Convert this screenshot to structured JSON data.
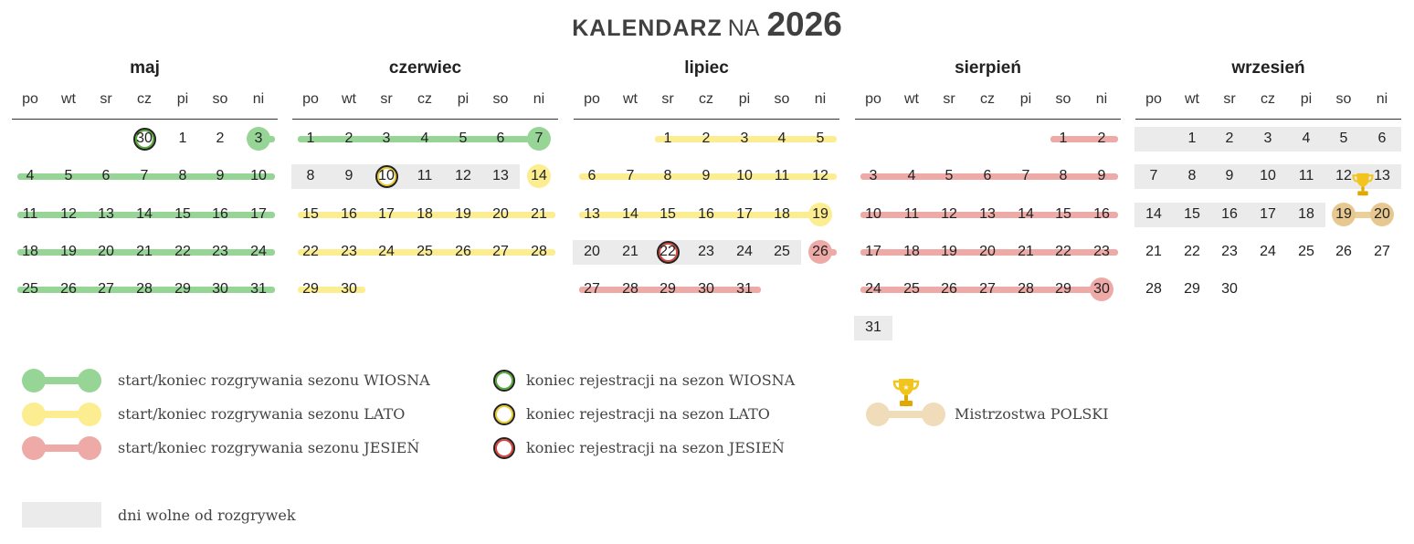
{
  "title": {
    "part1": "KALENDARZ",
    "part2": "NA",
    "year": "2026"
  },
  "weekdays": [
    "po",
    "wt",
    "sr",
    "cz",
    "pi",
    "so",
    "ni"
  ],
  "colors": {
    "green": "#97d597",
    "yellow": "#fced91",
    "red": "#eeaaa6",
    "gold": "#ecd09b",
    "gray": "#ebebeb"
  },
  "months": [
    {
      "name": "maj",
      "rows": [
        [
          "",
          "",
          "",
          "30",
          "1",
          "2",
          "3"
        ],
        [
          "4",
          "5",
          "6",
          "7",
          "8",
          "9",
          "10"
        ],
        [
          "11",
          "12",
          "13",
          "14",
          "15",
          "16",
          "17"
        ],
        [
          "18",
          "19",
          "20",
          "21",
          "22",
          "23",
          "24"
        ],
        [
          "25",
          "26",
          "27",
          "28",
          "29",
          "30",
          "31"
        ]
      ],
      "bars": [
        {
          "row": 0,
          "from": 6,
          "to": 6,
          "color": "green",
          "extendRight": true
        },
        {
          "row": 1,
          "from": 0,
          "to": 6,
          "color": "green",
          "extendLeft": true,
          "extendRight": true
        },
        {
          "row": 2,
          "from": 0,
          "to": 6,
          "color": "green",
          "extendLeft": true,
          "extendRight": true
        },
        {
          "row": 3,
          "from": 0,
          "to": 6,
          "color": "green",
          "extendLeft": true,
          "extendRight": true
        },
        {
          "row": 4,
          "from": 0,
          "to": 6,
          "color": "green",
          "extendLeft": true,
          "extendRight": true
        }
      ],
      "gray": [],
      "dots": [
        {
          "row": 0,
          "col": 6,
          "color": "green"
        }
      ],
      "rings": [
        {
          "row": 0,
          "col": 3,
          "color": "green"
        }
      ]
    },
    {
      "name": "czerwiec",
      "rows": [
        [
          "1",
          "2",
          "3",
          "4",
          "5",
          "6",
          "7"
        ],
        [
          "8",
          "9",
          "10",
          "11",
          "12",
          "13",
          "14"
        ],
        [
          "15",
          "16",
          "17",
          "18",
          "19",
          "20",
          "21"
        ],
        [
          "22",
          "23",
          "24",
          "25",
          "26",
          "27",
          "28"
        ],
        [
          "29",
          "30",
          "",
          "",
          "",
          "",
          ""
        ]
      ],
      "bars": [
        {
          "row": 0,
          "from": 0,
          "to": 6,
          "color": "green",
          "extendLeft": true
        },
        {
          "row": 2,
          "from": 0,
          "to": 6,
          "color": "yellow",
          "extendLeft": true,
          "extendRight": true
        },
        {
          "row": 3,
          "from": 0,
          "to": 6,
          "color": "yellow",
          "extendLeft": true,
          "extendRight": true
        },
        {
          "row": 4,
          "from": 0,
          "to": 1,
          "color": "yellow",
          "extendLeft": true,
          "extendRight": true
        }
      ],
      "gray": [
        {
          "row": 1,
          "from": 0,
          "to": 5
        }
      ],
      "dots": [
        {
          "row": 0,
          "col": 6,
          "color": "green"
        },
        {
          "row": 1,
          "col": 6,
          "color": "yellow"
        }
      ],
      "rings": [
        {
          "row": 1,
          "col": 2,
          "color": "yellow"
        }
      ]
    },
    {
      "name": "lipiec",
      "rows": [
        [
          "",
          "",
          "1",
          "2",
          "3",
          "4",
          "5"
        ],
        [
          "6",
          "7",
          "8",
          "9",
          "10",
          "11",
          "12"
        ],
        [
          "13",
          "14",
          "15",
          "16",
          "17",
          "18",
          "19"
        ],
        [
          "20",
          "21",
          "22",
          "23",
          "24",
          "25",
          "26"
        ],
        [
          "27",
          "28",
          "29",
          "30",
          "31",
          "",
          ""
        ]
      ],
      "bars": [
        {
          "row": 0,
          "from": 2,
          "to": 6,
          "color": "yellow",
          "extendLeft": true,
          "extendRight": true
        },
        {
          "row": 1,
          "from": 0,
          "to": 6,
          "color": "yellow",
          "extendLeft": true,
          "extendRight": true
        },
        {
          "row": 2,
          "from": 0,
          "to": 6,
          "color": "yellow",
          "extendLeft": true
        },
        {
          "row": 3,
          "from": 6,
          "to": 6,
          "color": "red",
          "extendRight": true
        },
        {
          "row": 4,
          "from": 0,
          "to": 4,
          "color": "red",
          "extendLeft": true,
          "extendRight": true
        }
      ],
      "gray": [
        {
          "row": 3,
          "from": 0,
          "to": 5
        }
      ],
      "dots": [
        {
          "row": 2,
          "col": 6,
          "color": "yellow"
        },
        {
          "row": 3,
          "col": 6,
          "color": "red"
        }
      ],
      "rings": [
        {
          "row": 3,
          "col": 2,
          "color": "red"
        }
      ]
    },
    {
      "name": "sierpień",
      "rows": [
        [
          "",
          "",
          "",
          "",
          "",
          "1",
          "2"
        ],
        [
          "3",
          "4",
          "5",
          "6",
          "7",
          "8",
          "9"
        ],
        [
          "10",
          "11",
          "12",
          "13",
          "14",
          "15",
          "16"
        ],
        [
          "17",
          "18",
          "19",
          "20",
          "21",
          "22",
          "23"
        ],
        [
          "24",
          "25",
          "26",
          "27",
          "28",
          "29",
          "30"
        ],
        [
          "31",
          "",
          "",
          "",
          "",
          "",
          ""
        ]
      ],
      "bars": [
        {
          "row": 0,
          "from": 5,
          "to": 6,
          "color": "red",
          "extendLeft": true,
          "extendRight": true
        },
        {
          "row": 1,
          "from": 0,
          "to": 6,
          "color": "red",
          "extendLeft": true,
          "extendRight": true
        },
        {
          "row": 2,
          "from": 0,
          "to": 6,
          "color": "red",
          "extendLeft": true,
          "extendRight": true
        },
        {
          "row": 3,
          "from": 0,
          "to": 6,
          "color": "red",
          "extendLeft": true,
          "extendRight": true
        },
        {
          "row": 4,
          "from": 0,
          "to": 6,
          "color": "red",
          "extendLeft": true
        }
      ],
      "gray": [
        {
          "row": 5,
          "from": 0,
          "to": 0
        }
      ],
      "dots": [
        {
          "row": 4,
          "col": 6,
          "color": "red"
        }
      ],
      "rings": []
    },
    {
      "name": "wrzesień",
      "rows": [
        [
          "",
          "1",
          "2",
          "3",
          "4",
          "5",
          "6"
        ],
        [
          "7",
          "8",
          "9",
          "10",
          "11",
          "12",
          "13"
        ],
        [
          "14",
          "15",
          "16",
          "17",
          "18",
          "19",
          "20"
        ],
        [
          "21",
          "22",
          "23",
          "24",
          "25",
          "26",
          "27"
        ],
        [
          "28",
          "29",
          "30",
          "",
          "",
          "",
          ""
        ]
      ],
      "bars": [
        {
          "row": 2,
          "from": 5,
          "to": 6,
          "color": "gold"
        }
      ],
      "gray": [
        {
          "row": 0,
          "from": 0,
          "to": 6
        },
        {
          "row": 1,
          "from": 0,
          "to": 6
        },
        {
          "row": 2,
          "from": 0,
          "to": 4
        }
      ],
      "dots": [
        {
          "row": 2,
          "col": 5,
          "color": "gold"
        },
        {
          "row": 2,
          "col": 6,
          "color": "gold"
        }
      ],
      "rings": [],
      "trophy": {
        "row": 1,
        "col": 5
      }
    }
  ],
  "legend": {
    "season_green": "start/koniec rozgrywania sezonu WIOSNA",
    "season_yellow": "start/koniec rozgrywania sezonu LATO",
    "season_red": "start/koniec rozgrywania sezonu JESIEŃ",
    "reg_green": "koniec rejestracji na sezon WIOSNA",
    "reg_yellow": "koniec rejestracji na sezon LATO",
    "reg_red": "koniec rejestracji na sezon JESIEŃ",
    "championship": "Mistrzostwa POLSKI",
    "free_days": "dni wolne od rozgrywek",
    "trophy_icon": "trophy-icon"
  }
}
